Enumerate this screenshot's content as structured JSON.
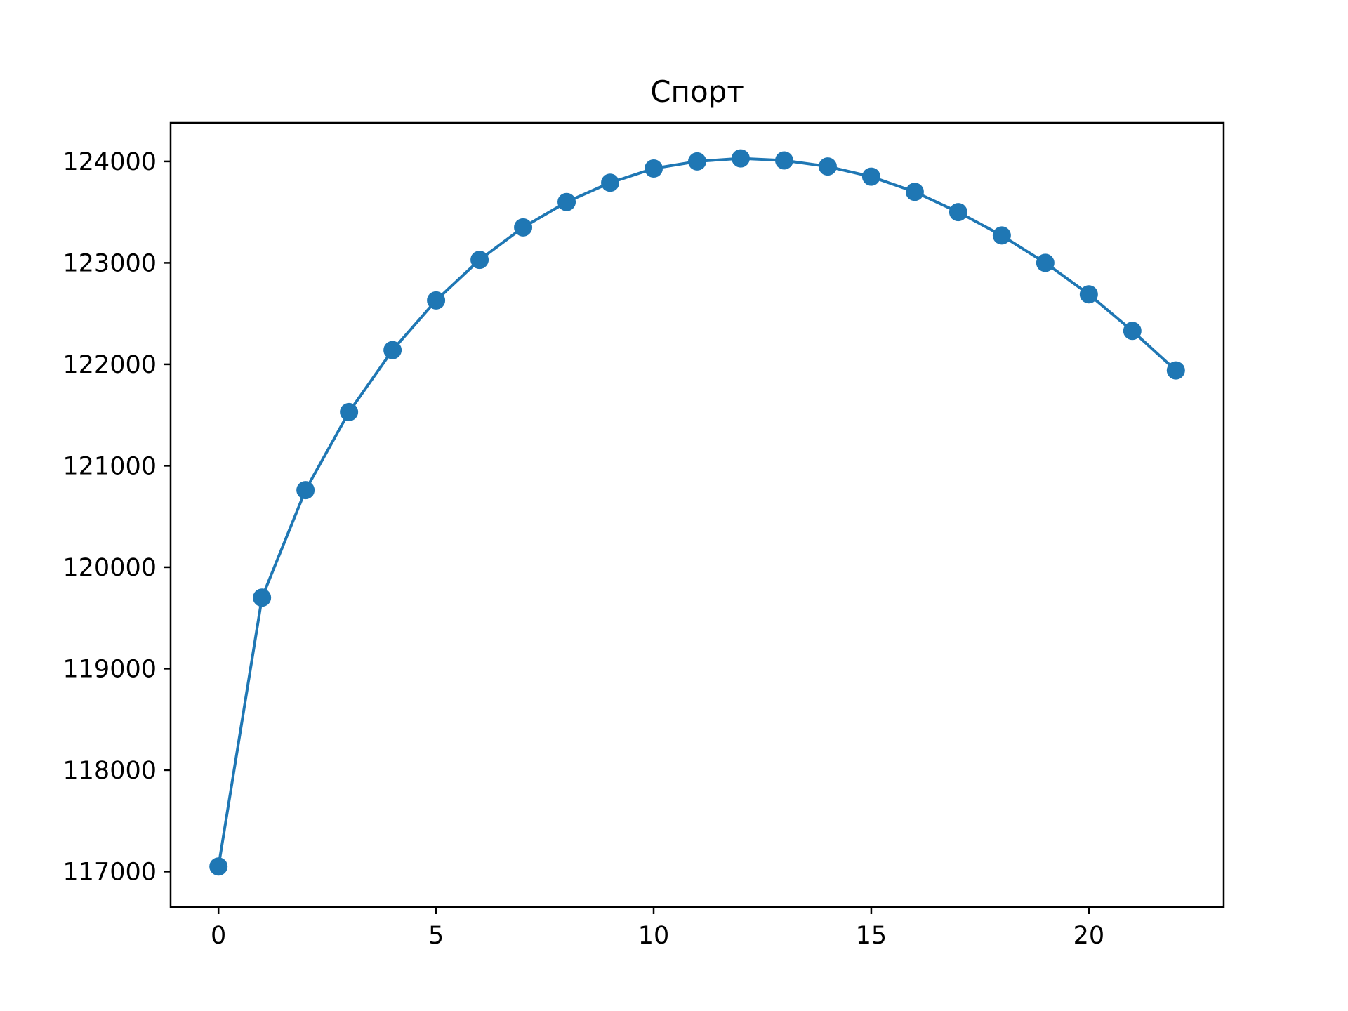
{
  "chart_data": {
    "type": "line",
    "title": "Спорт",
    "xlabel": "",
    "ylabel": "",
    "xlim": [
      -1.1,
      23.1
    ],
    "ylim": [
      116650,
      124380
    ],
    "x_ticks": [
      0,
      5,
      10,
      15,
      20
    ],
    "y_ticks": [
      117000,
      118000,
      119000,
      120000,
      121000,
      122000,
      123000,
      124000
    ],
    "grid": false,
    "color": "#1f77b4",
    "series": [
      {
        "x": [
          0,
          1,
          2,
          3,
          4,
          5,
          6,
          7,
          8,
          9,
          10,
          11,
          12,
          13,
          14,
          15,
          16,
          17,
          18,
          19,
          20,
          21,
          22
        ],
        "values": [
          117050,
          119700,
          120760,
          121530,
          122140,
          122630,
          123030,
          123350,
          123600,
          123790,
          123930,
          124000,
          124030,
          124010,
          123950,
          123850,
          123700,
          123500,
          123270,
          123000,
          122690,
          122330,
          121940
        ]
      }
    ]
  }
}
